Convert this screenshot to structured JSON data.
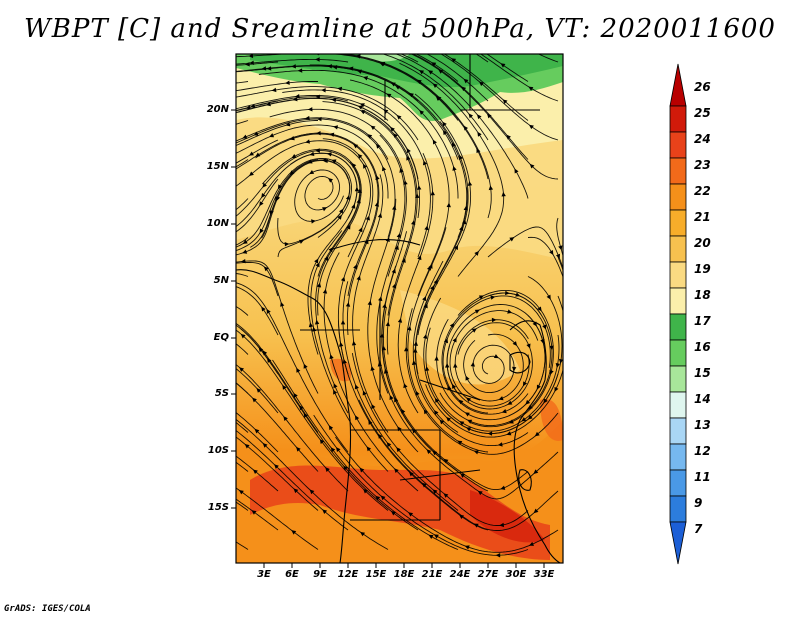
{
  "title": "WBPT [C] and Sreamline at 500hPa, VT: 2020011600",
  "credit": "GrADS: IGES/COLA",
  "map": {
    "lat_labels": [
      "20N",
      "15N",
      "10N",
      "5N",
      "EQ",
      "5S",
      "10S",
      "15S"
    ],
    "lon_labels": [
      "3E",
      "6E",
      "9E",
      "12E",
      "15E",
      "18E",
      "21E",
      "24E",
      "27E",
      "30E",
      "33E"
    ]
  },
  "colorbar": {
    "labels": [
      "26",
      "25",
      "24",
      "23",
      "22",
      "21",
      "20",
      "19",
      "18",
      "17",
      "16",
      "15",
      "14",
      "13",
      "12",
      "11",
      "9",
      "7"
    ],
    "colors": [
      "#b80000",
      "#d11a0a",
      "#e8421a",
      "#f26a1a",
      "#f5901a",
      "#f7ad2a",
      "#f7c14f",
      "#fada82",
      "#fbefab",
      "#3fb44a",
      "#66cc5e",
      "#a8e69a",
      "#dff6ef",
      "#a9d6f5",
      "#76b8ef",
      "#4a99e6",
      "#2c7ddd",
      "#1c5fd6"
    ]
  }
}
